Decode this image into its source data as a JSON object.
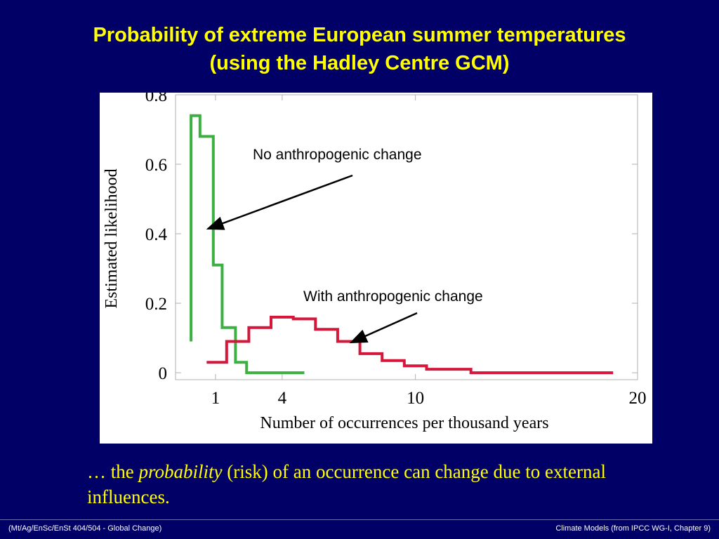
{
  "slide": {
    "title_line1": "Probability of extreme European summer temperatures",
    "title_line2": "(using the Hadley Centre GCM)",
    "caption_pre": "… the ",
    "caption_em": "probability",
    "caption_post": " (risk) of an occurrence can change due to external influences.",
    "footer_left": "(Mt/Ag/EnSc/EnSt 404/504 - Global Change)",
    "footer_right": "Climate Models  (from IPCC WG-I, Chapter 9)"
  },
  "colors": {
    "background": "#010066",
    "title": "#ffff00",
    "no_change_series": "#3cb043",
    "with_change_series": "#d4173a"
  },
  "chart_data": {
    "type": "line",
    "step": true,
    "title": "",
    "xlabel": "Number of occurrences per thousand years",
    "ylabel": "Estimated likelihood",
    "xlim": [
      -0.8,
      20
    ],
    "ylim": [
      -0.02,
      0.8
    ],
    "xticks": [
      1,
      4,
      10,
      20
    ],
    "yticks": [
      0,
      0.2,
      0.4,
      0.6,
      0.8
    ],
    "ytick_labels": [
      "0",
      "0.2",
      "0.4",
      "0.6",
      "0.8"
    ],
    "grid": false,
    "series": [
      {
        "label_key": "no_change",
        "color": "#3cb043",
        "x": [
          -0.1,
          -0.1,
          0.3,
          0.3,
          0.9,
          0.9,
          1.3,
          1.3,
          1.9,
          1.9,
          2.4,
          2.4,
          3.0,
          3.0,
          4.0,
          4.0,
          5.0
        ],
        "y": [
          0.09,
          0.74,
          0.74,
          0.68,
          0.68,
          0.31,
          0.31,
          0.13,
          0.13,
          0.03,
          0.03,
          0.0,
          0.0,
          0.0,
          0.0,
          0.0,
          0.0
        ]
      },
      {
        "label_key": "with_change",
        "color": "#d4173a",
        "x": [
          0.6,
          0.6,
          1.5,
          1.5,
          2.5,
          2.5,
          3.5,
          3.5,
          4.5,
          4.5,
          5.5,
          5.5,
          6.5,
          6.5,
          7.5,
          7.5,
          8.5,
          8.5,
          9.5,
          9.5,
          10.5,
          10.5,
          12.5,
          12.5,
          14.5,
          14.5,
          15.5,
          15.5,
          17.5,
          17.5,
          18.9
        ],
        "y": [
          0.03,
          0.03,
          0.03,
          0.09,
          0.09,
          0.13,
          0.13,
          0.16,
          0.16,
          0.155,
          0.155,
          0.125,
          0.125,
          0.09,
          0.09,
          0.055,
          0.055,
          0.035,
          0.035,
          0.02,
          0.02,
          0.01,
          0.01,
          0.0,
          0.0,
          0.0,
          0.0,
          0.0,
          0.0,
          0.0,
          0.0
        ]
      }
    ],
    "annotations": {
      "no_change": "No anthropogenic change",
      "with_change": "With anthropogenic change"
    }
  }
}
